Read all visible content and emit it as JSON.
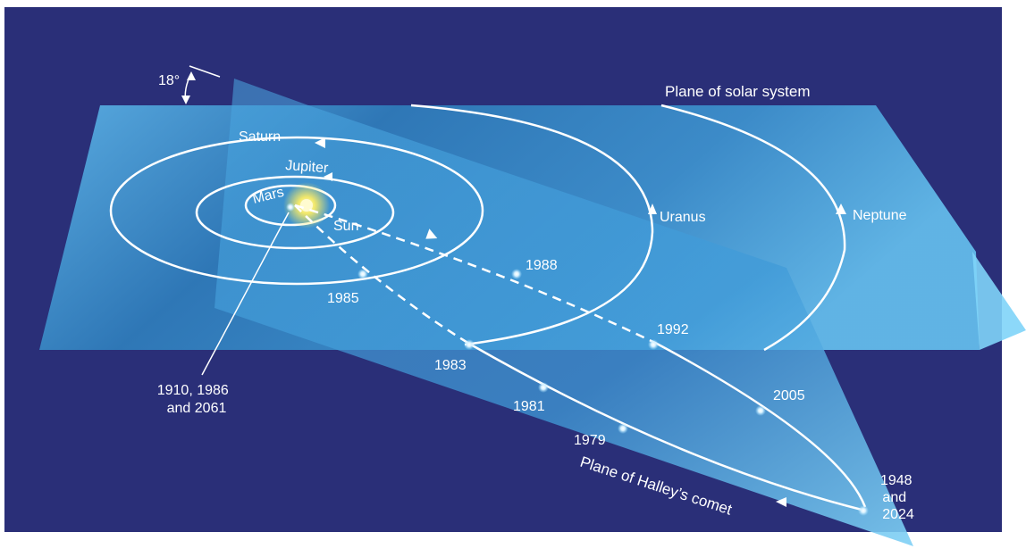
{
  "diagram": {
    "colors": {
      "background": "#2a2f78",
      "solar_plane": "#3d9bd6",
      "comet_plane": "#4fb0e8",
      "orbit": "#ffffff",
      "sun_glow": "#f2e86a"
    },
    "angle_label": "18°",
    "solar_plane_label": "Plane of solar system",
    "comet_plane_label": "Plane of Halley’s comet",
    "bodies": {
      "saturn": "Saturn",
      "jupiter": "Jupiter",
      "mars": "Mars",
      "sun": "Sun",
      "uranus": "Uranus",
      "neptune": "Neptune"
    },
    "comet_positions": {
      "p1988": "1988",
      "p1985": "1985",
      "p1992": "1992",
      "p1983": "1983",
      "p1981": "1981",
      "p2005": "2005",
      "p1979": "1979"
    },
    "perihelion_label": [
      "1910, 1986",
      "and 2061"
    ],
    "aphelion_label": [
      "1948",
      "and",
      "2024"
    ]
  }
}
